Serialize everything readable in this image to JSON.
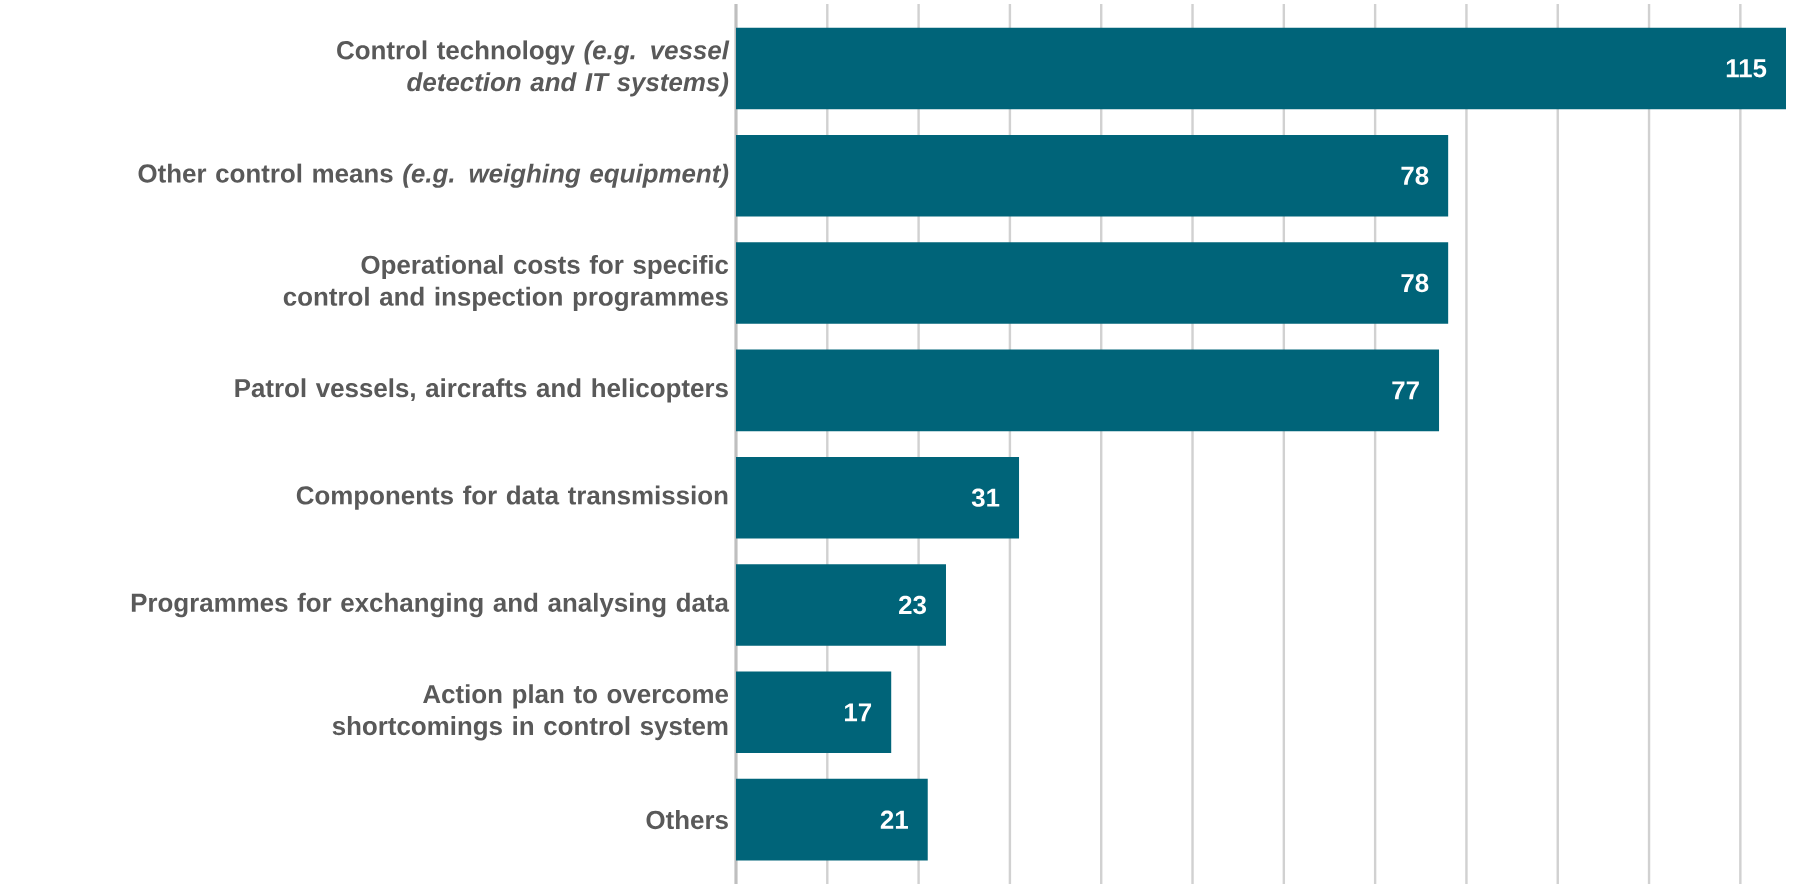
{
  "chart_data": {
    "type": "bar",
    "orientation": "horizontal",
    "categories": [
      "Control technology *(e.g. vessel detection and IT systems)*",
      "Other control means *(e.g. weighing equipment)*",
      "Operational costs for specific control and inspection programmes",
      "Patrol vessels, aircrafts and helicopters",
      "Components for data transmission",
      "Programmes for exchanging and analysing data",
      "Action plan to overcome shortcomings in control system",
      "Others"
    ],
    "values": [
      115,
      78,
      78,
      77,
      31,
      23,
      17,
      21
    ],
    "color": "#006479",
    "xlim": [
      0,
      115
    ],
    "grid": "x",
    "tick_labels": "y",
    "data_labels": true
  }
}
